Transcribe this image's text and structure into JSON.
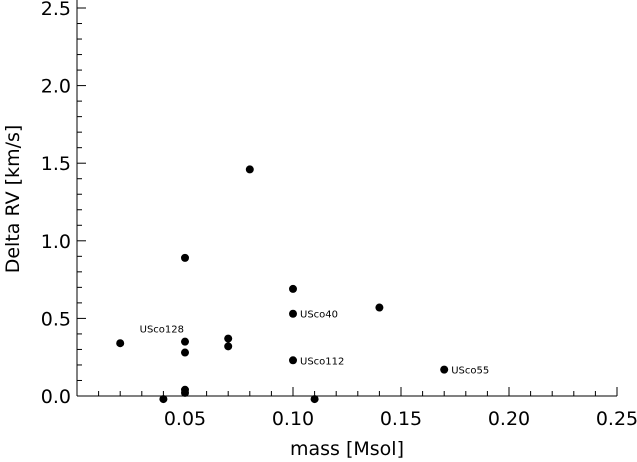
{
  "chart_data": {
    "type": "scatter",
    "title": "",
    "xlabel": "mass [Msol]",
    "ylabel": "Delta RV [km/s]",
    "xlim": [
      0.0,
      0.25
    ],
    "ylim": [
      0.0,
      2.5
    ],
    "xticks": [
      0.05,
      0.1,
      0.15,
      0.2,
      0.25
    ],
    "xtick_labels": [
      "0.05",
      "0.10",
      "0.15",
      "0.20",
      "0.25"
    ],
    "yticks": [
      0.0,
      0.5,
      1.0,
      1.5,
      2.0,
      2.5
    ],
    "ytick_labels": [
      "0.0",
      "0.5",
      "1.0",
      "1.5",
      "2.0",
      "2.5"
    ],
    "grid": false,
    "marker_color": "#000000",
    "points": [
      {
        "x": 0.02,
        "y": 0.34,
        "label": ""
      },
      {
        "x": 0.04,
        "y": -0.02,
        "label": ""
      },
      {
        "x": 0.05,
        "y": 0.89,
        "label": ""
      },
      {
        "x": 0.05,
        "y": 0.35,
        "label": "USco128",
        "label_pos": "above-left"
      },
      {
        "x": 0.05,
        "y": 0.28,
        "label": ""
      },
      {
        "x": 0.05,
        "y": 0.04,
        "label": ""
      },
      {
        "x": 0.05,
        "y": 0.02,
        "label": ""
      },
      {
        "x": 0.07,
        "y": 0.37,
        "label": ""
      },
      {
        "x": 0.07,
        "y": 0.32,
        "label": ""
      },
      {
        "x": 0.08,
        "y": 1.46,
        "label": ""
      },
      {
        "x": 0.1,
        "y": 0.69,
        "label": ""
      },
      {
        "x": 0.1,
        "y": 0.53,
        "label": "USco40",
        "label_pos": "right"
      },
      {
        "x": 0.1,
        "y": 0.23,
        "label": "USco112",
        "label_pos": "right"
      },
      {
        "x": 0.11,
        "y": -0.02,
        "label": ""
      },
      {
        "x": 0.14,
        "y": 0.57,
        "label": ""
      },
      {
        "x": 0.17,
        "y": 0.17,
        "label": "USco55",
        "label_pos": "right"
      }
    ]
  }
}
